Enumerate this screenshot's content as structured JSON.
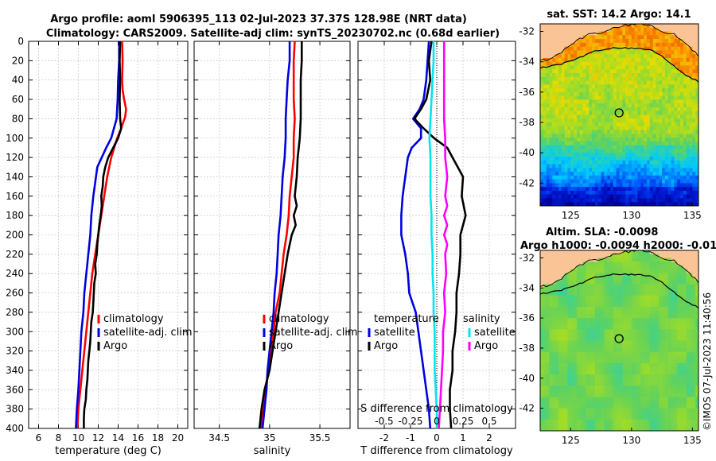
{
  "header": {
    "title_line1": "Argo profile: aoml 5906395_113 02-Jul-2023 37.37S 128.98E (NRT data)",
    "title_line2": "Climatology: CARS2009. Satellite-adj clim: synTS_20230702.nc (0.68d earlier)"
  },
  "copyright": "©IMOS 07-Jul-2023 11:40:56",
  "colors": {
    "climatology": "#ff0000",
    "satellite": "#0000e0",
    "argo": "#000000",
    "sal_satellite": "#00e5ee",
    "sal_argo": "#ff00ff",
    "grid": "#bbbbbb"
  },
  "chart_data": [
    {
      "type": "line",
      "id": "temperature",
      "xlabel": "temperature (deg C)",
      "ylabel": "",
      "xlim": [
        5,
        21
      ],
      "ylim": [
        400,
        0
      ],
      "x_ticks": [
        6,
        8,
        10,
        12,
        14,
        16,
        18,
        20
      ],
      "x_tick_labels": [
        "6",
        "8",
        "10",
        "12",
        "14",
        "16",
        "18",
        "20"
      ],
      "y_ticks": [
        0,
        20,
        40,
        60,
        80,
        100,
        120,
        140,
        160,
        180,
        200,
        220,
        240,
        260,
        280,
        300,
        320,
        340,
        360,
        380,
        400
      ],
      "y_tick_labels": [
        "0",
        "20",
        "40",
        "60",
        "80",
        "100",
        "120",
        "140",
        "160",
        "180",
        "200",
        "220",
        "240",
        "260",
        "280",
        "300",
        "320",
        "340",
        "360",
        "380",
        "400"
      ],
      "legend": [
        "climatology",
        "satellite-adj. clim",
        "Argo"
      ],
      "series": [
        {
          "name": "climatology",
          "color": "#ff0000",
          "depth": [
            0,
            20,
            40,
            50,
            60,
            70,
            78,
            90,
            100,
            120,
            140,
            160,
            180,
            200,
            220,
            240,
            260,
            280,
            300,
            320,
            340,
            360,
            380,
            400
          ],
          "values": [
            14.4,
            14.45,
            14.4,
            14.45,
            14.6,
            14.8,
            14.7,
            14.3,
            13.9,
            13.3,
            12.9,
            12.6,
            12.3,
            12.0,
            11.7,
            11.4,
            11.2,
            11.0,
            10.8,
            10.6,
            10.4,
            10.2,
            10.0,
            9.9
          ]
        },
        {
          "name": "satellite-adj. clim",
          "color": "#0000e0",
          "depth": [
            0,
            20,
            40,
            60,
            80,
            100,
            110,
            130,
            160,
            180,
            200,
            220,
            240,
            260,
            280,
            300,
            320,
            340,
            360,
            380,
            400
          ],
          "values": [
            14.1,
            14.1,
            14.0,
            13.95,
            13.85,
            13.3,
            12.8,
            11.9,
            11.5,
            11.3,
            11.2,
            11.0,
            10.8,
            10.6,
            10.5,
            10.3,
            10.2,
            10.1,
            10.0,
            9.85,
            9.75
          ]
        },
        {
          "name": "Argo",
          "color": "#000000",
          "depth": [
            0,
            20,
            40,
            60,
            80,
            90,
            100,
            110,
            120,
            130,
            140,
            150,
            160,
            170,
            180,
            190,
            200,
            210,
            220,
            230,
            240,
            250,
            260,
            270,
            280,
            290,
            300,
            310,
            320,
            330,
            340,
            350,
            360,
            370,
            380,
            390,
            400
          ],
          "values": [
            14.2,
            14.15,
            14.2,
            14.15,
            14.2,
            14.3,
            14.0,
            13.5,
            13.0,
            12.7,
            12.5,
            12.45,
            12.3,
            12.35,
            12.25,
            12.1,
            12.0,
            11.9,
            11.85,
            11.7,
            11.75,
            11.6,
            11.55,
            11.5,
            11.45,
            11.3,
            11.25,
            11.2,
            11.1,
            11.0,
            10.95,
            10.9,
            10.8,
            10.75,
            10.6,
            10.55,
            10.55
          ]
        }
      ]
    },
    {
      "type": "line",
      "id": "salinity",
      "xlabel": "salinity",
      "xlim": [
        34.25,
        35.8
      ],
      "ylim": [
        400,
        0
      ],
      "x_ticks": [
        34.5,
        35,
        35.5
      ],
      "x_tick_labels": [
        "34.5",
        "35",
        "35.5"
      ],
      "legend": [
        "climatology",
        "satellite-adj. clim",
        "Argo"
      ],
      "series": [
        {
          "name": "climatology",
          "color": "#ff0000",
          "depth": [
            0,
            20,
            40,
            60,
            80,
            100,
            120,
            140,
            160,
            180,
            200,
            220,
            240,
            260,
            280,
            300,
            320,
            340,
            360,
            380,
            400
          ],
          "values": [
            35.25,
            35.24,
            35.24,
            35.24,
            35.25,
            35.24,
            35.24,
            35.22,
            35.2,
            35.19,
            35.17,
            35.14,
            35.12,
            35.1,
            35.06,
            35.04,
            35.02,
            34.99,
            34.96,
            34.94,
            34.91
          ]
        },
        {
          "name": "satellite-adj. clim",
          "color": "#0000e0",
          "depth": [
            0,
            20,
            40,
            60,
            80,
            100,
            120,
            140,
            160,
            180,
            200,
            220,
            240,
            260,
            280,
            300,
            320,
            340,
            360,
            380,
            400
          ],
          "values": [
            35.2,
            35.2,
            35.18,
            35.17,
            35.16,
            35.16,
            35.15,
            35.13,
            35.12,
            35.11,
            35.09,
            35.08,
            35.07,
            35.05,
            35.04,
            35.02,
            35.0,
            34.98,
            34.97,
            34.95,
            34.93
          ]
        },
        {
          "name": "Argo",
          "color": "#000000",
          "depth": [
            0,
            20,
            40,
            60,
            80,
            100,
            120,
            140,
            160,
            170,
            180,
            190,
            200,
            210,
            220,
            240,
            260,
            280,
            300,
            320,
            340,
            360,
            380,
            400
          ],
          "values": [
            35.32,
            35.32,
            35.31,
            35.31,
            35.31,
            35.3,
            35.28,
            35.27,
            35.25,
            35.27,
            35.24,
            35.26,
            35.22,
            35.2,
            35.18,
            35.15,
            35.12,
            35.09,
            35.06,
            35.03,
            35.0,
            34.95,
            34.92,
            34.9
          ]
        }
      ]
    },
    {
      "type": "line",
      "id": "difference",
      "xlabel": "T difference from climatology",
      "top_xlabel": "S difference from climatology",
      "xlim": [
        -3,
        3
      ],
      "ylim": [
        400,
        0
      ],
      "x_ticks": [
        -2,
        -1,
        0,
        1,
        2
      ],
      "x_tick_labels": [
        "-2",
        "-1",
        "0",
        "1",
        "2"
      ],
      "s_ticks": [
        -0.5,
        -0.25,
        0,
        0.25,
        0.5
      ],
      "s_tick_labels": [
        "-0.5",
        "-0.25",
        "0",
        "0.25",
        "0.5"
      ],
      "s_scale": 4,
      "legend_temperature_title": "temperature",
      "legend_salinity_title": "salinity",
      "legend_temperature": [
        "satellite",
        "Argo"
      ],
      "legend_salinity": [
        "satellite",
        "Argo"
      ],
      "series": [
        {
          "name": "T satellite",
          "color": "#0000e0",
          "depth": [
            0,
            20,
            40,
            60,
            70,
            80,
            90,
            100,
            110,
            120,
            140,
            160,
            180,
            200,
            220,
            240,
            260,
            280,
            300,
            320,
            340,
            360,
            380,
            400
          ],
          "values": [
            -0.3,
            -0.35,
            -0.4,
            -0.5,
            -0.65,
            -0.9,
            -0.6,
            -0.6,
            -0.95,
            -1.1,
            -1.2,
            -1.3,
            -1.35,
            -1.35,
            -1.2,
            -1.1,
            -1.05,
            -0.8,
            -0.7,
            -0.6,
            -0.5,
            -0.4,
            -0.3,
            -0.25
          ]
        },
        {
          "name": "T Argo",
          "color": "#000000",
          "depth": [
            0,
            20,
            40,
            60,
            70,
            80,
            90,
            100,
            110,
            120,
            130,
            140,
            160,
            180,
            200,
            220,
            240,
            260,
            280,
            300,
            320,
            340,
            360,
            380,
            400
          ],
          "values": [
            -0.2,
            -0.3,
            -0.25,
            -0.4,
            -0.6,
            -0.85,
            -0.5,
            -0.1,
            0.4,
            0.6,
            0.8,
            1.0,
            0.95,
            1.1,
            0.9,
            0.9,
            0.85,
            0.75,
            0.75,
            0.7,
            0.6,
            0.6,
            0.5,
            0.5,
            0.55
          ]
        },
        {
          "name": "S satellite",
          "color": "#00e5ee",
          "depth": [
            0,
            20,
            40,
            60,
            80,
            100,
            120,
            140,
            160,
            180,
            200,
            220,
            240,
            260,
            280,
            300,
            320,
            340,
            360,
            380,
            400
          ],
          "values": [
            -0.03,
            -0.03,
            -0.04,
            -0.05,
            -0.06,
            -0.07,
            -0.06,
            -0.06,
            -0.06,
            -0.05,
            -0.05,
            -0.04,
            -0.04,
            -0.03,
            -0.03,
            -0.02,
            -0.02,
            -0.02,
            -0.01,
            0.0,
            0.0
          ]
        },
        {
          "name": "S Argo",
          "color": "#ff00ff",
          "depth": [
            0,
            20,
            40,
            60,
            80,
            100,
            120,
            140,
            160,
            170,
            180,
            190,
            200,
            210,
            220,
            240,
            260,
            280,
            300,
            320,
            340,
            360,
            380,
            400
          ],
          "values": [
            0.07,
            0.07,
            0.07,
            0.07,
            0.07,
            0.08,
            0.08,
            0.1,
            0.08,
            0.1,
            0.07,
            0.1,
            0.07,
            0.1,
            0.08,
            0.09,
            0.07,
            0.08,
            0.06,
            0.06,
            0.05,
            0.04,
            0.03,
            0.02
          ]
        }
      ]
    },
    {
      "type": "heatmap",
      "id": "sst_map",
      "title": "sat. SST: 14.2 Argo: 14.1",
      "xlim": [
        122.5,
        135.5
      ],
      "ylim": [
        -43.5,
        -31.5
      ],
      "x_ticks": [
        125,
        130,
        135
      ],
      "x_tick_labels": [
        "125",
        "130",
        "135"
      ],
      "y_ticks": [
        -32,
        -34,
        -36,
        -38,
        -40,
        -42
      ],
      "y_tick_labels": [
        "-32",
        "-34",
        "-36",
        "-38",
        "-40",
        "-42"
      ],
      "marker": [
        128.98,
        -37.37
      ]
    },
    {
      "type": "heatmap",
      "id": "sla_map",
      "title_line1": "Altim. SLA: -0.0098",
      "title_line2": "Argo h1000: -0.0094 h2000: -0.01",
      "xlim": [
        122.5,
        135.5
      ],
      "ylim": [
        -43.5,
        -31.5
      ],
      "x_ticks": [
        125,
        130,
        135
      ],
      "x_tick_labels": [
        "125",
        "130",
        "135"
      ],
      "y_ticks": [
        -32,
        -34,
        -36,
        -38,
        -40,
        -42
      ],
      "y_tick_labels": [
        "-32",
        "-34",
        "-36",
        "-38",
        "-40",
        "-42"
      ],
      "marker": [
        128.98,
        -37.37
      ]
    }
  ]
}
